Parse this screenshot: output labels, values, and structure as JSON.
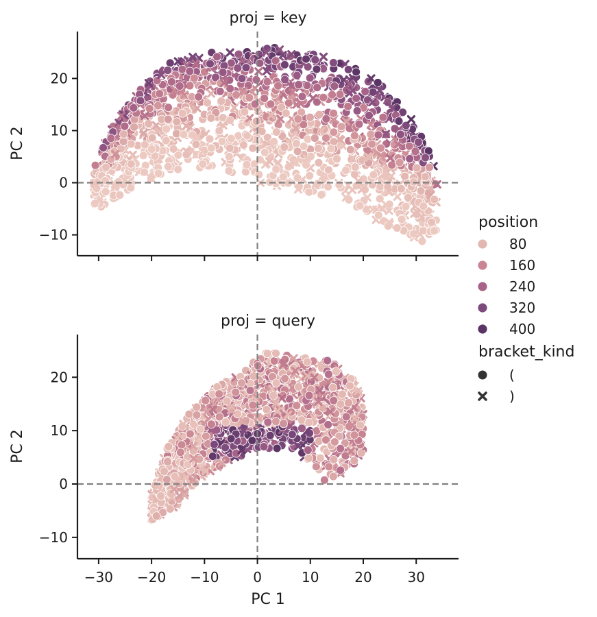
{
  "chart_data": {
    "type": "scatter",
    "facet_variable": "proj",
    "x_variable": "PC 1",
    "y_variable": "PC 2",
    "xlabel": "PC 1",
    "xlim": [
      -34,
      38
    ],
    "x_ticks": [
      -30,
      -20,
      -10,
      0,
      10,
      20,
      30
    ],
    "y_ticks": [
      -10,
      0,
      10,
      20
    ],
    "reference_lines": {
      "x": 0,
      "y": 0,
      "style": "dashed",
      "color": "#808080"
    },
    "hue_variable": "position",
    "hue_range": [
      0,
      440
    ],
    "style_variable": "bracket_kind",
    "panels": [
      {
        "title": "proj = key",
        "ylabel": "PC 2",
        "ylim": [
          -14,
          29
        ],
        "show_xticklabels": false,
        "description_of_point_cloud": "dome-shaped cloud spanning PC1 -31 to 34; low positions (light) concentrated in lower-left and bottom-right; high positions (dark) along upper-right rim",
        "approx_envelope": {
          "x_range": [
            -31,
            34
          ],
          "upper_y_at_x": [
            [
              -31,
              4
            ],
            [
              -27,
              12
            ],
            [
              -22,
              18
            ],
            [
              -17,
              23
            ],
            [
              -10,
              25
            ],
            [
              -3,
              25
            ],
            [
              3,
              26
            ],
            [
              10,
              25
            ],
            [
              16,
              23
            ],
            [
              21,
              21
            ],
            [
              26,
              17
            ],
            [
              30,
              11
            ],
            [
              33,
              5
            ],
            [
              34,
              0
            ]
          ],
          "lower_y_at_x": [
            [
              -30,
              -5
            ],
            [
              -27,
              -3
            ],
            [
              -22,
              0
            ],
            [
              -15,
              2
            ],
            [
              -8,
              3
            ],
            [
              0,
              0
            ],
            [
              8,
              -2
            ],
            [
              15,
              -3
            ],
            [
              20,
              -6
            ],
            [
              25,
              -11
            ],
            [
              30,
              -12
            ],
            [
              34,
              -10
            ]
          ]
        }
      },
      {
        "title": "proj = query",
        "ylabel": "PC 2",
        "ylim": [
          -14,
          28
        ],
        "show_xticklabels": true,
        "description_of_point_cloud": "cloud sloping up from lower-left (light, -20,-7) to a plateau near PC2 20-25; dark high-position points clustered around PC1 -8 to 10, PC2 7-9",
        "approx_envelope": {
          "x_range": [
            -20,
            20
          ],
          "upper_y_at_x": [
            [
              -20,
              -2
            ],
            [
              -17,
              7
            ],
            [
              -13,
              13
            ],
            [
              -8,
              18
            ],
            [
              -3,
              21
            ],
            [
              2,
              25
            ],
            [
              8,
              24
            ],
            [
              14,
              23
            ],
            [
              19,
              19
            ],
            [
              20,
              14
            ]
          ],
          "lower_y_at_x": [
            [
              -20,
              -7
            ],
            [
              -16,
              -5
            ],
            [
              -11,
              1
            ],
            [
              -6,
              4
            ],
            [
              0,
              6
            ],
            [
              6,
              7
            ],
            [
              10,
              4
            ],
            [
              13,
              0
            ],
            [
              17,
              2
            ],
            [
              20,
              6
            ]
          ]
        }
      }
    ],
    "legend": {
      "placement": "right",
      "hue_title": "position",
      "hue_entries": [
        {
          "label": "80",
          "color": "#e3b7b1"
        },
        {
          "label": "160",
          "color": "#c98592"
        },
        {
          "label": "240",
          "color": "#a86488"
        },
        {
          "label": "320",
          "color": "#7d4a7d"
        },
        {
          "label": "400",
          "color": "#5a3464"
        }
      ],
      "style_title": "bracket_kind",
      "style_entries": [
        {
          "label": "(",
          "marker": "circle-icon"
        },
        {
          "label": ")",
          "marker": "x-icon"
        }
      ]
    }
  }
}
